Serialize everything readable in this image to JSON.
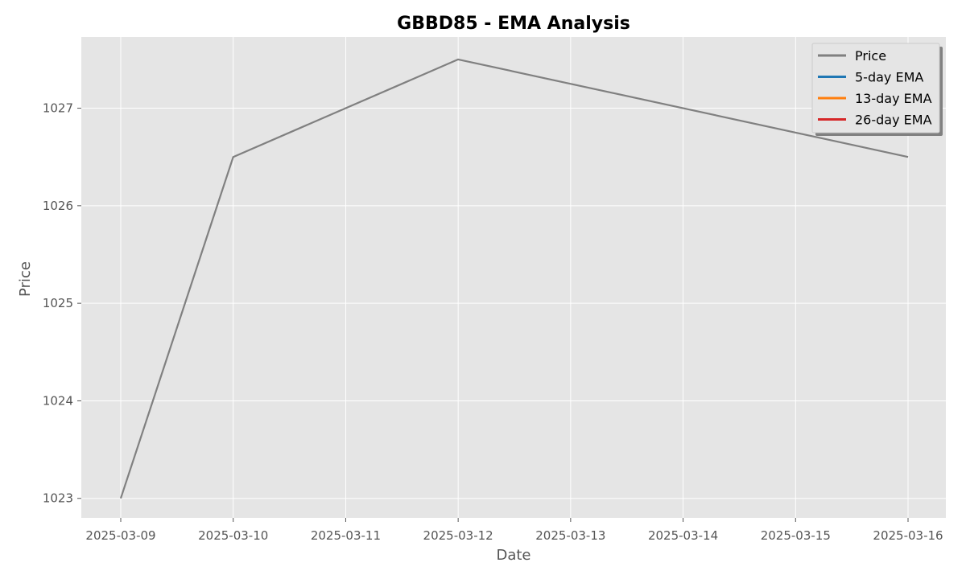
{
  "chart_data": {
    "type": "line",
    "title": "GBBD85 - EMA Analysis",
    "xlabel": "Date",
    "ylabel": "Price",
    "x": [
      "2025-03-09",
      "2025-03-10",
      "2025-03-11",
      "2025-03-12",
      "2025-03-13",
      "2025-03-14",
      "2025-03-15",
      "2025-03-16"
    ],
    "xticks": [
      "2025-03-09",
      "2025-03-10",
      "2025-03-11",
      "2025-03-12",
      "2025-03-13",
      "2025-03-14",
      "2025-03-15",
      "2025-03-16"
    ],
    "yticks": [
      1023,
      1024,
      1025,
      1026,
      1027
    ],
    "ylim": [
      1022.8,
      1027.73
    ],
    "grid": true,
    "legend_position": "top-right",
    "series": [
      {
        "name": "Price",
        "color": "#808080",
        "points": [
          {
            "x": "2025-03-09",
            "y": 1023.0
          },
          {
            "x": "2025-03-10",
            "y": 1026.5
          },
          {
            "x": "2025-03-12",
            "y": 1027.5
          },
          {
            "x": "2025-03-16",
            "y": 1026.5
          }
        ]
      },
      {
        "name": "5-day EMA",
        "color": "#1f77b4",
        "points": []
      },
      {
        "name": "13-day EMA",
        "color": "#ff7f0e",
        "points": []
      },
      {
        "name": "26-day EMA",
        "color": "#d62728",
        "points": []
      }
    ]
  }
}
